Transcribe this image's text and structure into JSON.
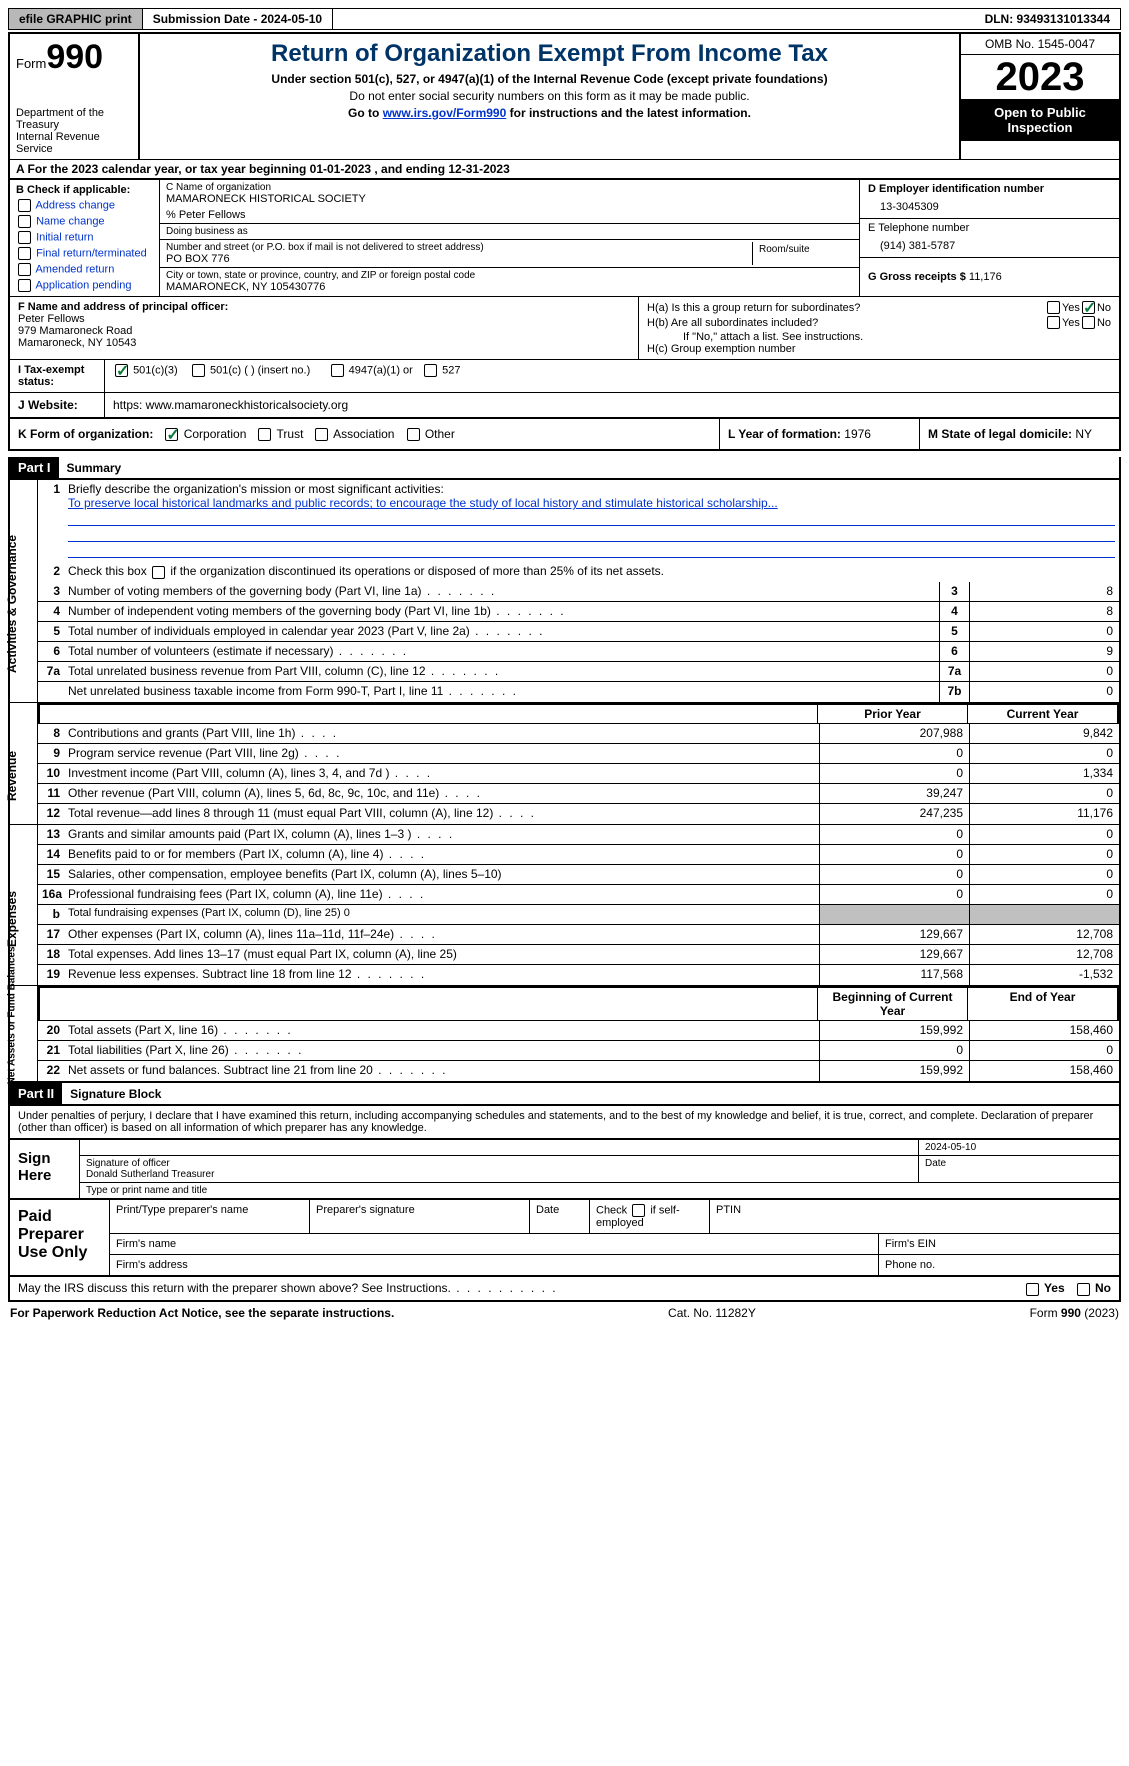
{
  "topbar": {
    "efile": "efile GRAPHIC print",
    "submission": "Submission Date - 2024-05-10",
    "dln": "DLN: 93493131013344"
  },
  "header": {
    "form_word": "Form",
    "form_num": "990",
    "dept": "Department of the Treasury",
    "irs": "Internal Revenue Service",
    "title": "Return of Organization Exempt From Income Tax",
    "sub1": "Under section 501(c), 527, or 4947(a)(1) of the Internal Revenue Code (except private foundations)",
    "sub2": "Do not enter social security numbers on this form as it may be made public.",
    "sub3_pre": "Go to ",
    "sub3_link": "www.irs.gov/Form990",
    "sub3_post": " for instructions and the latest information.",
    "omb": "OMB No. 1545-0047",
    "year": "2023",
    "open": "Open to Public Inspection"
  },
  "rowA": "A For the 2023 calendar year, or tax year beginning 01-01-2023   , and ending 12-31-2023",
  "B": {
    "label": "B Check if applicable:",
    "opts": [
      "Address change",
      "Name change",
      "Initial return",
      "Final return/terminated",
      "Amended return",
      "Application pending"
    ]
  },
  "C": {
    "name_lbl": "C Name of organization",
    "name": "MAMARONECK HISTORICAL SOCIETY",
    "care": "% Peter Fellows",
    "dba_lbl": "Doing business as",
    "street_lbl": "Number and street (or P.O. box if mail is not delivered to street address)",
    "street": "PO BOX 776",
    "room_lbl": "Room/suite",
    "city_lbl": "City or town, state or province, country, and ZIP or foreign postal code",
    "city": "MAMARONECK, NY  105430776"
  },
  "D": {
    "lbl": "D Employer identification number",
    "val": "13-3045309"
  },
  "E": {
    "lbl": "E Telephone number",
    "val": "(914) 381-5787"
  },
  "G": {
    "lbl": "G Gross receipts $",
    "val": "11,176"
  },
  "F": {
    "lbl": "F  Name and address of principal officer:",
    "name": "Peter Fellows",
    "addr1": "979 Mamaroneck Road",
    "addr2": "Mamaroneck, NY  10543"
  },
  "H": {
    "a": "H(a)  Is this a group return for subordinates?",
    "b": "H(b)  Are all subordinates included?",
    "bnote": "If \"No,\" attach a list. See instructions.",
    "c": "H(c)  Group exemption number",
    "yes": "Yes",
    "no": "No"
  },
  "I": {
    "lbl": "I  Tax-exempt status:",
    "o1": "501(c)(3)",
    "o2": "501(c) (  ) (insert no.)",
    "o3": "4947(a)(1) or",
    "o4": "527"
  },
  "J": {
    "lbl": "J  Website:",
    "val": "https: www.mamaroneckhistoricalsociety.org"
  },
  "K": {
    "lbl": "K Form of organization:",
    "o1": "Corporation",
    "o2": "Trust",
    "o3": "Association",
    "o4": "Other"
  },
  "L": {
    "lbl": "L Year of formation:",
    "val": "1976"
  },
  "M": {
    "lbl": "M State of legal domicile:",
    "val": "NY"
  },
  "part1": {
    "bar": "Part I",
    "title": "Summary"
  },
  "sections": {
    "gov": "Activities & Governance",
    "rev": "Revenue",
    "exp": "Expenses",
    "net": "Net Assets or Fund Balances"
  },
  "s1": {
    "lbl": "Briefly describe the organization's mission or most significant activities:",
    "text": "To preserve local historical landmarks and public records; to encourage the study of local history and stimulate historical scholarship..."
  },
  "s2": "Check this box      if the organization discontinued its operations or disposed of more than 25% of its net assets.",
  "lines_gov": [
    {
      "n": "3",
      "d": "Number of voting members of the governing body (Part VI, line 1a)",
      "box": "3",
      "v": "8"
    },
    {
      "n": "4",
      "d": "Number of independent voting members of the governing body (Part VI, line 1b)",
      "box": "4",
      "v": "8"
    },
    {
      "n": "5",
      "d": "Total number of individuals employed in calendar year 2023 (Part V, line 2a)",
      "box": "5",
      "v": "0"
    },
    {
      "n": "6",
      "d": "Total number of volunteers (estimate if necessary)",
      "box": "6",
      "v": "9"
    },
    {
      "n": "7a",
      "d": "Total unrelated business revenue from Part VIII, column (C), line 12",
      "box": "7a",
      "v": "0"
    },
    {
      "n": "",
      "d": "Net unrelated business taxable income from Form 990-T, Part I, line 11",
      "box": "7b",
      "v": "0"
    }
  ],
  "hdr_py": "Prior Year",
  "hdr_cy": "Current Year",
  "lines_rev": [
    {
      "n": "8",
      "d": "Contributions and grants (Part VIII, line 1h)",
      "py": "207,988",
      "cy": "9,842"
    },
    {
      "n": "9",
      "d": "Program service revenue (Part VIII, line 2g)",
      "py": "0",
      "cy": "0"
    },
    {
      "n": "10",
      "d": "Investment income (Part VIII, column (A), lines 3, 4, and 7d )",
      "py": "0",
      "cy": "1,334"
    },
    {
      "n": "11",
      "d": "Other revenue (Part VIII, column (A), lines 5, 6d, 8c, 9c, 10c, and 11e)",
      "py": "39,247",
      "cy": "0"
    },
    {
      "n": "12",
      "d": "Total revenue—add lines 8 through 11 (must equal Part VIII, column (A), line 12)",
      "py": "247,235",
      "cy": "11,176"
    }
  ],
  "lines_exp": [
    {
      "n": "13",
      "d": "Grants and similar amounts paid (Part IX, column (A), lines 1–3 )",
      "py": "0",
      "cy": "0",
      "dots": "dots3"
    },
    {
      "n": "14",
      "d": "Benefits paid to or for members (Part IX, column (A), line 4)",
      "py": "0",
      "cy": "0",
      "dots": "dots3"
    },
    {
      "n": "15",
      "d": "Salaries, other compensation, employee benefits (Part IX, column (A), lines 5–10)",
      "py": "0",
      "cy": "0",
      "dots": ""
    },
    {
      "n": "16a",
      "d": "Professional fundraising fees (Part IX, column (A), line 11e)",
      "py": "0",
      "cy": "0",
      "dots": "dots3"
    },
    {
      "n": "b",
      "d": "Total fundraising expenses (Part IX, column (D), line 25) 0",
      "py": "",
      "cy": "",
      "grey": true,
      "dots": "",
      "small": true
    },
    {
      "n": "17",
      "d": "Other expenses (Part IX, column (A), lines 11a–11d, 11f–24e)",
      "py": "129,667",
      "cy": "12,708",
      "dots": "dots3"
    },
    {
      "n": "18",
      "d": "Total expenses. Add lines 13–17 (must equal Part IX, column (A), line 25)",
      "py": "129,667",
      "cy": "12,708",
      "dots": ""
    },
    {
      "n": "19",
      "d": "Revenue less expenses. Subtract line 18 from line 12",
      "py": "117,568",
      "cy": "-1,532",
      "dots": "dots2"
    }
  ],
  "hdr_bcy": "Beginning of Current Year",
  "hdr_eoy": "End of Year",
  "lines_net": [
    {
      "n": "20",
      "d": "Total assets (Part X, line 16)",
      "py": "159,992",
      "cy": "158,460"
    },
    {
      "n": "21",
      "d": "Total liabilities (Part X, line 26)",
      "py": "0",
      "cy": "0"
    },
    {
      "n": "22",
      "d": "Net assets or fund balances. Subtract line 21 from line 20",
      "py": "159,992",
      "cy": "158,460"
    }
  ],
  "part2": {
    "bar": "Part II",
    "title": "Signature Block"
  },
  "sig": {
    "decl": "Under penalties of perjury, I declare that I have examined this return, including accompanying schedules and statements, and to the best of my knowledge and belief, it is true, correct, and complete. Declaration of preparer (other than officer) is based on all information of which preparer has any knowledge.",
    "signhere": "Sign Here",
    "date": "2024-05-10",
    "sig_of": "Signature of officer",
    "name": "Donald Sutherland Treasurer",
    "type_lbl": "Type or print name and title",
    "date_lbl": "Date"
  },
  "prep": {
    "title": "Paid Preparer Use Only",
    "c1": "Print/Type preparer's name",
    "c2": "Preparer's signature",
    "c3": "Date",
    "c4_pre": "Check",
    "c4_post": "if self-employed",
    "c5": "PTIN",
    "r2a": "Firm's name",
    "r2b": "Firm's EIN",
    "r3a": "Firm's address",
    "r3b": "Phone no."
  },
  "discuss": {
    "q": "May the IRS discuss this return with the preparer shown above? See Instructions.",
    "yes": "Yes",
    "no": "No"
  },
  "foot": {
    "l": "For Paperwork Reduction Act Notice, see the separate instructions.",
    "m": "Cat. No. 11282Y",
    "r": "Form 990 (2023)"
  }
}
